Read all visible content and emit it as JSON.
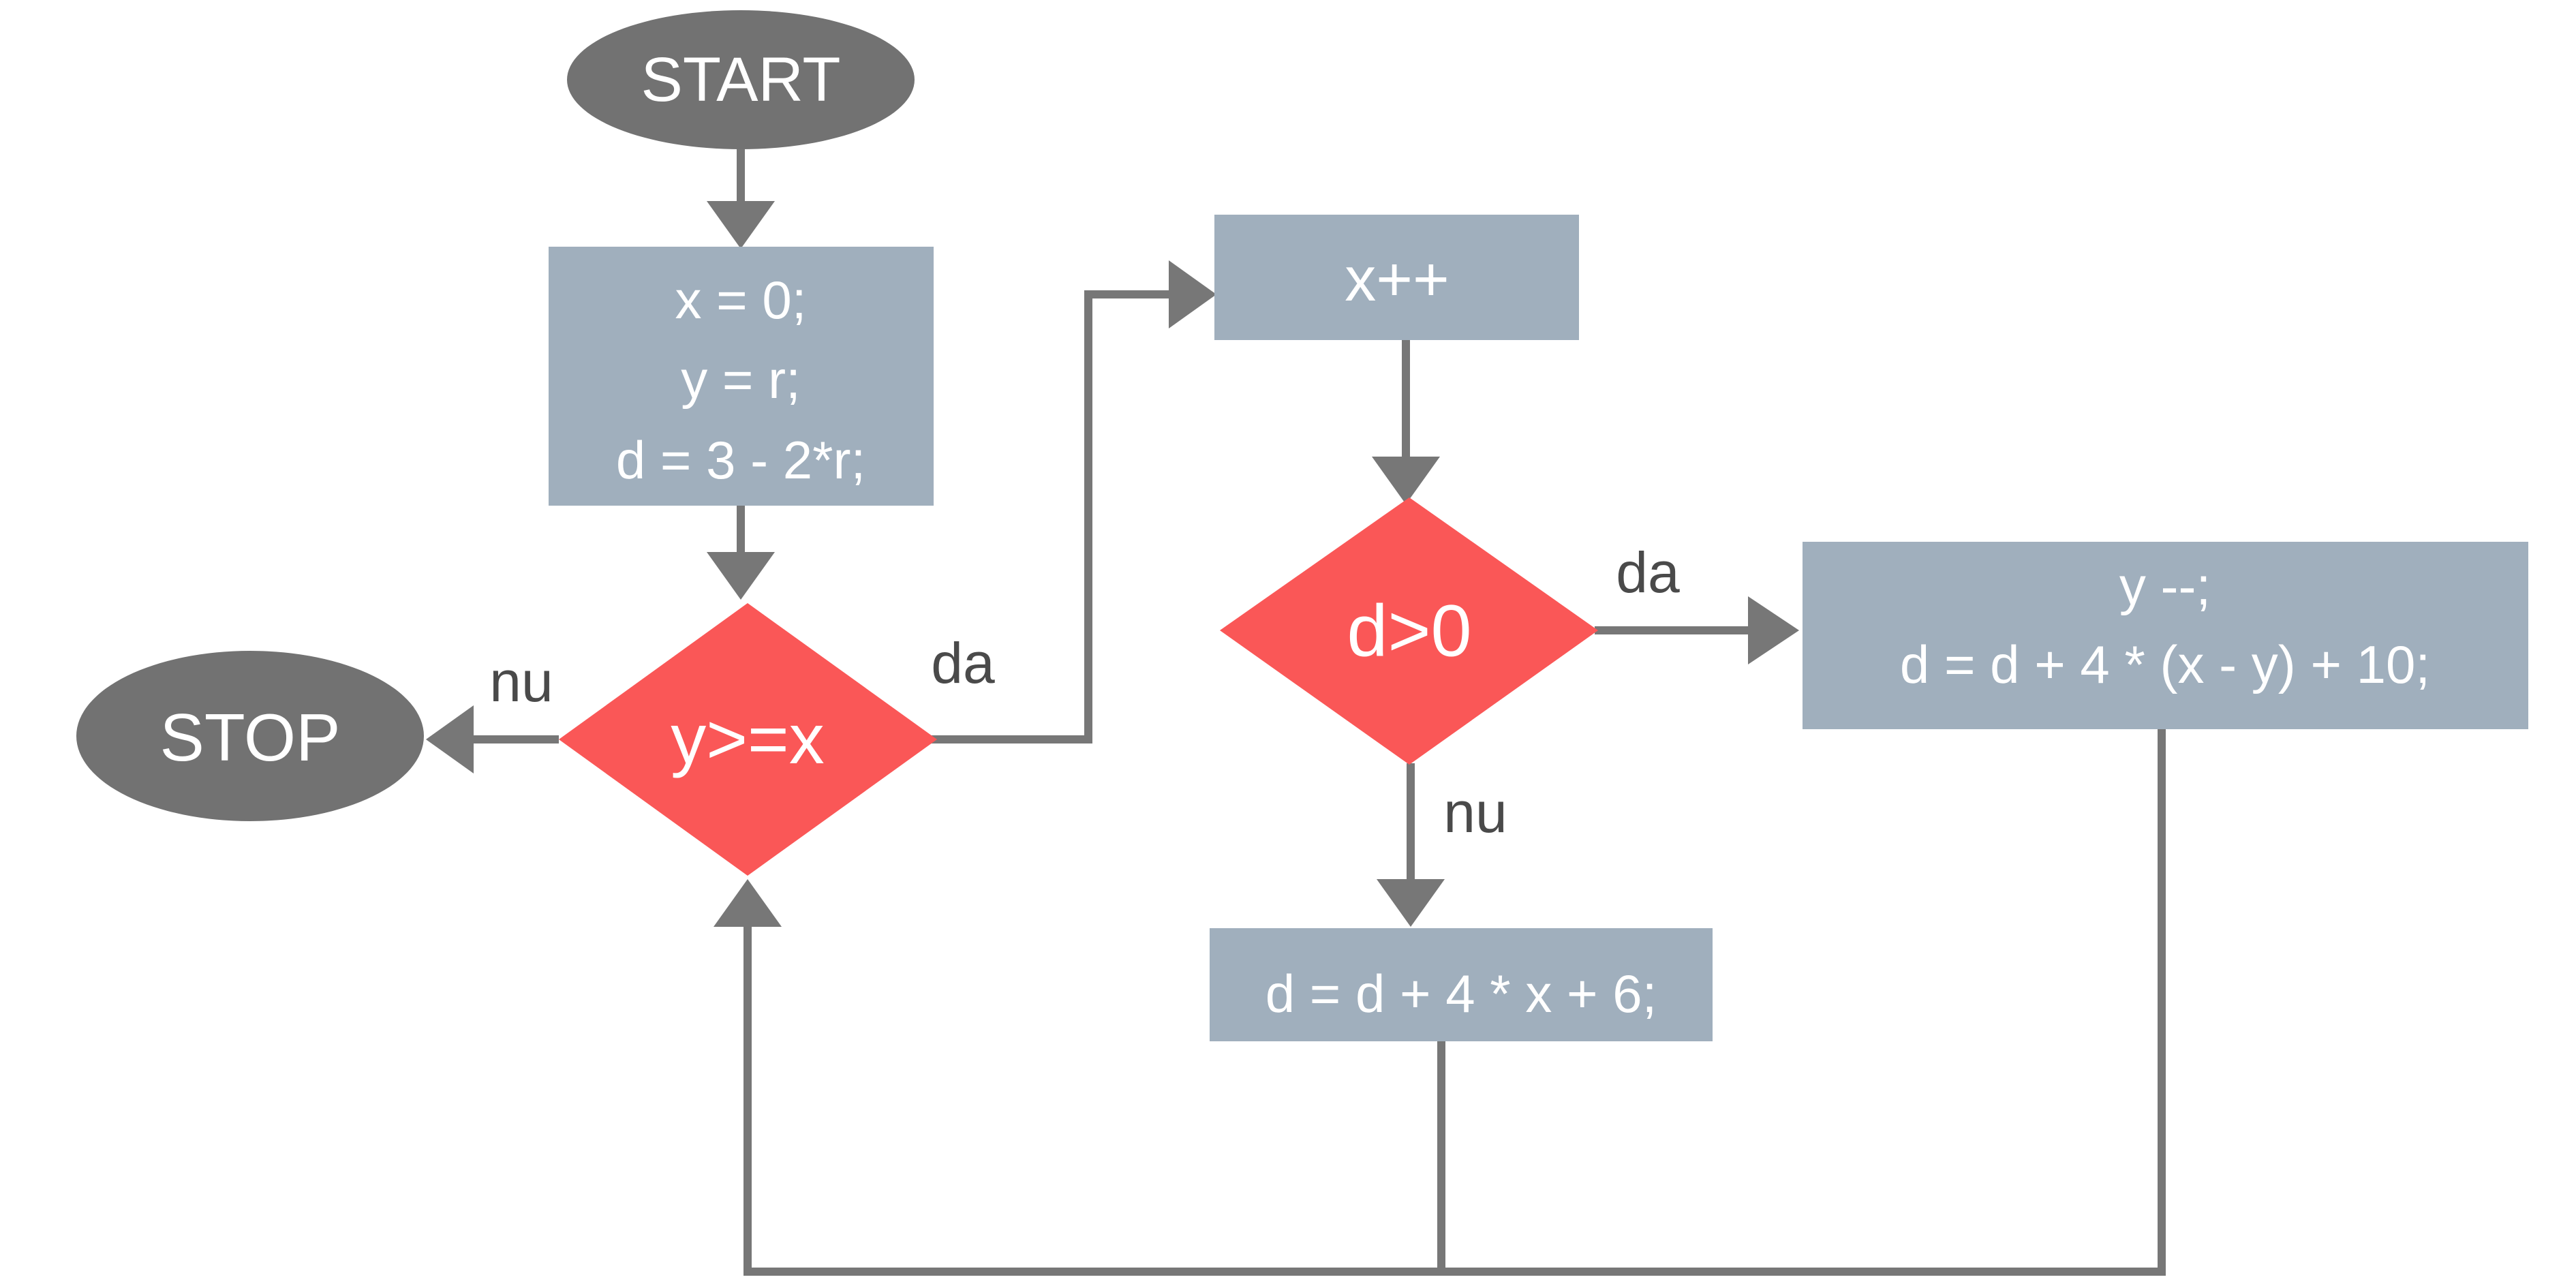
{
  "diagram": {
    "nodes": {
      "start": {
        "label": "START"
      },
      "init": {
        "lines": [
          "x = 0;",
          "y = r;",
          "d = 3 - 2*r;"
        ]
      },
      "loop_cond": {
        "label": "y>=x"
      },
      "stop": {
        "label": "STOP"
      },
      "increment": {
        "label": "x++"
      },
      "d_cond": {
        "label": "d>0"
      },
      "update_yes": {
        "lines": [
          "y --;",
          "d = d + 4 * (x - y) + 10;"
        ]
      },
      "update_no": {
        "label": "d = d + 4 * x + 6;"
      }
    },
    "edge_labels": {
      "loop_yes": "da",
      "loop_no": "nu",
      "d_yes": "da",
      "d_no": "nu"
    }
  },
  "colors": {
    "terminal": "#727272",
    "process": "#a0afbd",
    "decision": "#fa5757",
    "connector": "#777777"
  }
}
